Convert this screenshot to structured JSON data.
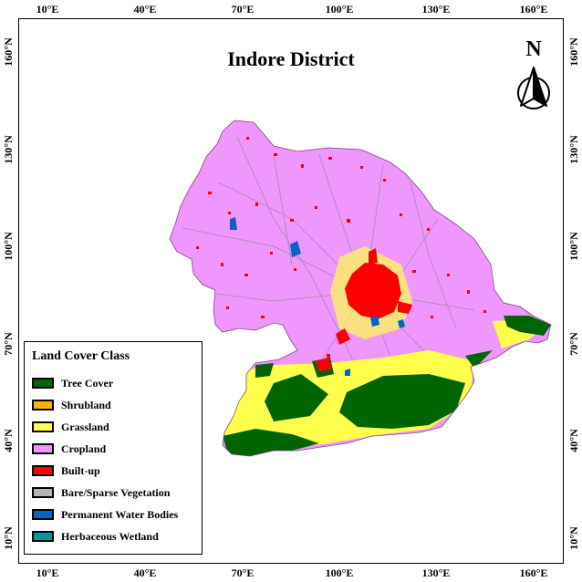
{
  "map": {
    "title": "Indore District",
    "north_label": "N",
    "lon_ticks": [
      "10°E",
      "40°E",
      "70°E",
      "100°E",
      "130°E",
      "160°E"
    ],
    "lat_ticks": [
      "160°N",
      "130°N",
      "100°N",
      "70°N",
      "40°N",
      "10°N"
    ]
  },
  "legend": {
    "title": "Land Cover Class",
    "items": [
      {
        "label": "Tree Cover",
        "color": "#006400"
      },
      {
        "label": "Shrubland",
        "color": "#ffb000"
      },
      {
        "label": "Grassland",
        "color": "#ffff4c"
      },
      {
        "label": "Cropland",
        "color": "#f096ff"
      },
      {
        "label": "Built-up",
        "color": "#fa0000"
      },
      {
        "label": "Bare/Sparse Vegetation",
        "color": "#b4b4b4"
      },
      {
        "label": "Permanent Water Bodies",
        "color": "#0064c8"
      },
      {
        "label": "Herbaceous Wetland",
        "color": "#0096a0"
      }
    ]
  }
}
